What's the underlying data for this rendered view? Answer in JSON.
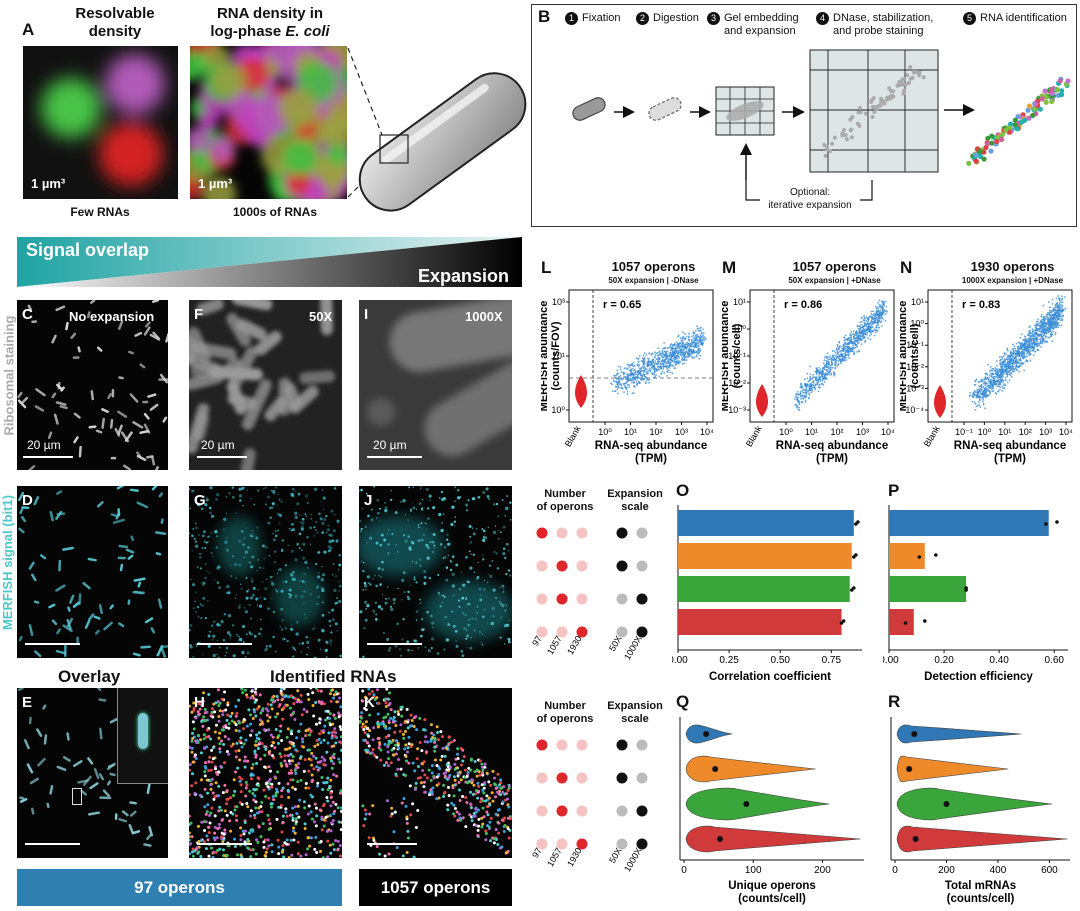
{
  "panelA": {
    "letter": "A",
    "title1": "Resolvable\ndensity",
    "title2": "RNA density in\nlog-phase E. coli",
    "scale1": "1 µm³",
    "scale2": "1 µm³",
    "caption1": "Few RNAs",
    "caption2": "1000s of RNAs"
  },
  "panelB": {
    "letter": "B",
    "steps": [
      {
        "n": "1",
        "label": "Fixation"
      },
      {
        "n": "2",
        "label": "Digestion"
      },
      {
        "n": "3",
        "label": "Gel embedding\nand expansion"
      },
      {
        "n": "4",
        "label": "DNase, stabilization,\nand probe staining"
      },
      {
        "n": "5",
        "label": "RNA identification"
      }
    ],
    "optional": "Optional:\niterative expansion"
  },
  "gradient": {
    "signal": "Signal overlap",
    "expansion": "Expansion"
  },
  "sideLabels": {
    "ribosomal": "Ribosomal staining",
    "merfish": "MERFISH signal (bit1)"
  },
  "micro": {
    "C": {
      "letter": "C",
      "label": "No expansion",
      "scale": "20 µm"
    },
    "F": {
      "letter": "F",
      "label": "50X",
      "scale": "20 µm"
    },
    "I": {
      "letter": "I",
      "label": "1000X",
      "scale": "20 µm"
    },
    "D": {
      "letter": "D"
    },
    "G": {
      "letter": "G"
    },
    "J": {
      "letter": "J"
    },
    "E": {
      "letter": "E"
    },
    "H": {
      "letter": "H"
    },
    "K": {
      "letter": "K"
    }
  },
  "overlayTitle": "Overlay",
  "identifiedTitle": "Identified RNAs",
  "banners": {
    "left": "97 operons",
    "right": "1057 operons"
  },
  "colors": {
    "blue": "#2f78b5",
    "orange": "#ef8a2a",
    "green": "#3aa53a",
    "red": "#d13a3a",
    "scatter": "#3d8fd6",
    "banner_blue": "#2f7fb0",
    "violin_red": "#e0262a"
  },
  "chart_data": [
    {
      "id": "L",
      "type": "scatter",
      "letter": "L",
      "title": "1057 operons",
      "subtitle": "50X expansion | -DNase",
      "ylabel": "MERFISH abundance\n(counts/FOV)",
      "xlabel": "RNA-seq abundance\n(TPM)",
      "r": "r = 0.65",
      "xticks": [
        "10⁰",
        "10¹",
        "10²",
        "10³",
        "10⁴"
      ],
      "yticks": [
        "10¹",
        "10³",
        "10⁰",
        "10¹",
        "10³"
      ],
      "ytick_text": [
        "10³",
        "10¹",
        "10⁰"
      ],
      "blank": "Blank",
      "dashed_threshold": true
    },
    {
      "id": "M",
      "type": "scatter",
      "letter": "M",
      "title": "1057 operons",
      "subtitle": "50X expansion | +DNase",
      "ylabel": "MERFISH abundance\n(counts/cell)",
      "xlabel": "RNA-seq abundance\n(TPM)",
      "r": "r = 0.86",
      "xticks": [
        "10⁰",
        "10¹",
        "10²",
        "10³",
        "10⁴"
      ],
      "ytick_text": [
        "10¹",
        "10⁰",
        "10⁻¹",
        "10⁻²",
        "10⁻³"
      ],
      "blank": "Blank"
    },
    {
      "id": "N",
      "type": "scatter",
      "letter": "N",
      "title": "1930 operons",
      "subtitle": "1000X expansion | +DNase",
      "ylabel": "MERFISH abundance\n(counts/cell)",
      "xlabel": "RNA-seq abundance\n(TPM)",
      "r": "r = 0.83",
      "xticks": [
        "10⁻¹",
        "10⁰",
        "10¹",
        "10²",
        "10³",
        "10⁴"
      ],
      "ytick_text": [
        "10¹",
        "10⁰",
        "10⁻¹",
        "10⁻²",
        "10⁻³",
        "10⁻⁴"
      ],
      "blank": "Blank"
    },
    {
      "id": "O",
      "type": "bar",
      "letter": "O",
      "xlabel": "Correlation coefficient",
      "xticks": [
        "0.00",
        "0.25",
        "0.50",
        "0.75"
      ],
      "xlim": [
        0,
        0.9
      ],
      "values": [
        0.86,
        0.85,
        0.84,
        0.8
      ],
      "dots": [
        [
          0.88,
          0.87
        ],
        [
          0.87,
          0.86
        ],
        [
          0.86,
          0.85
        ],
        [
          0.81,
          0.8
        ]
      ]
    },
    {
      "id": "P",
      "type": "bar",
      "letter": "P",
      "xlabel": "Detection efficiency",
      "xticks": [
        "0.00",
        "0.20",
        "0.40",
        "0.60"
      ],
      "xlim": [
        0,
        0.65
      ],
      "values": [
        0.58,
        0.13,
        0.28,
        0.09
      ],
      "dots": [
        [
          0.61,
          0.57
        ],
        [
          0.17,
          0.11
        ],
        [
          0.28,
          0.28
        ],
        [
          0.13,
          0.06
        ]
      ]
    },
    {
      "id": "Q",
      "type": "violin",
      "letter": "Q",
      "xlabel": "Unique operons\n(counts/cell)",
      "xticks": [
        "0",
        "100",
        "200"
      ],
      "xlim": [
        0,
        260
      ],
      "medians": [
        32,
        45,
        90,
        52
      ]
    },
    {
      "id": "R",
      "type": "violin",
      "letter": "R",
      "xlabel": "Total mRNAs\n(counts/cell)",
      "xticks": [
        "0",
        "200",
        "400",
        "600"
      ],
      "xlim": [
        0,
        680
      ],
      "medians": [
        75,
        55,
        200,
        80
      ]
    }
  ],
  "legend": {
    "operons_title": "Number\nof operons",
    "scale_title": "Expansion\nscale",
    "operon_labels": [
      "97",
      "1057",
      "1930"
    ],
    "scale_labels": [
      "50X",
      "1000X"
    ],
    "rows": [
      [
        0,
        0
      ],
      [
        1,
        0
      ],
      [
        1,
        1
      ],
      [
        2,
        1
      ]
    ]
  }
}
